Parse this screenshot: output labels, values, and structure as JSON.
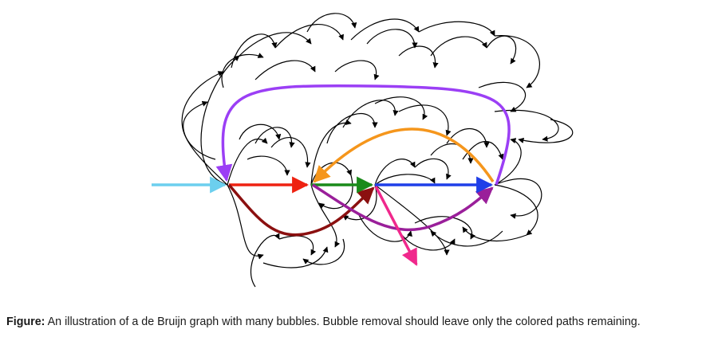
{
  "figure": {
    "caption_lead": "Figure:",
    "caption_text": " An illustration of a de Bruijn graph with many bubbles. Bubble removal should leave only the colored paths remaining."
  },
  "diagram": {
    "colors": {
      "input_edge": "#6ccfee",
      "red_path": "#ee2211",
      "green_path": "#1a8a1a",
      "blue_path": "#1f3fe8",
      "purple_top_loop": "#9b3ff5",
      "orange_back_edge": "#f5961c",
      "dark_red_path": "#8b1010",
      "magenta_path": "#9a1f9a",
      "pink_exit_edge": "#f0288c",
      "bubble_edges": "#000000"
    }
  }
}
